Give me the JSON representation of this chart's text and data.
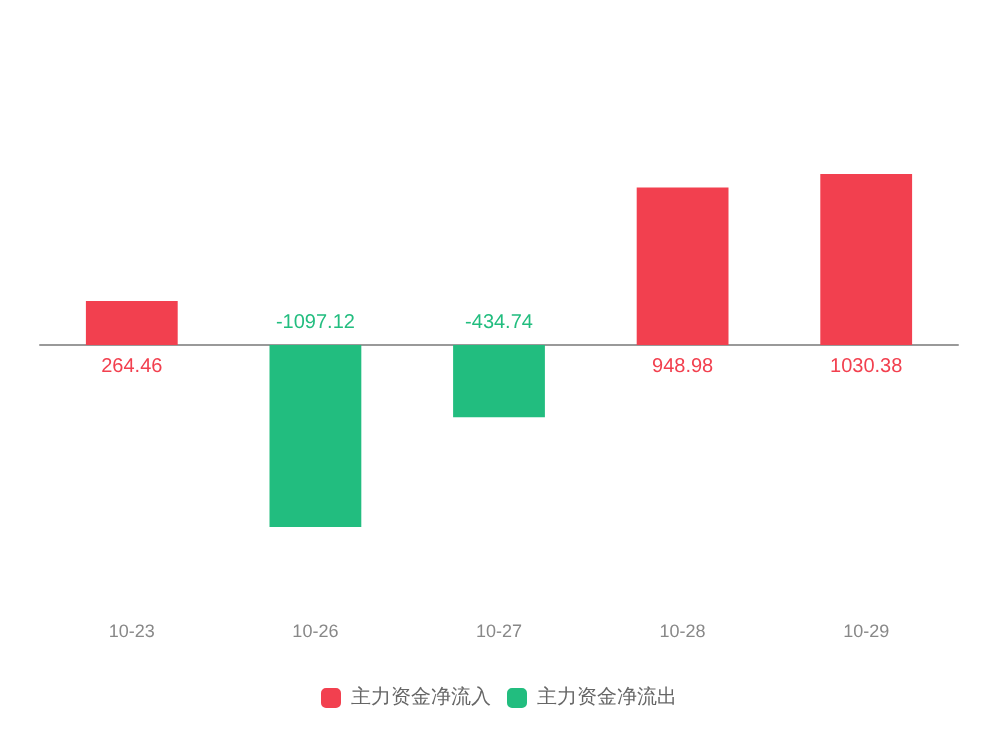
{
  "chart_data": {
    "type": "bar",
    "categories": [
      "10-23",
      "10-26",
      "10-27",
      "10-28",
      "10-29"
    ],
    "series": [
      {
        "name": "主力资金净流入",
        "color": "#f2404f",
        "values": [
          264.46,
          null,
          null,
          948.98,
          1030.38
        ]
      },
      {
        "name": "主力资金净流出",
        "color": "#22bd7f",
        "values": [
          null,
          -1097.12,
          -434.74,
          null,
          null
        ]
      }
    ],
    "data_labels": true,
    "legend": "bottom"
  }
}
